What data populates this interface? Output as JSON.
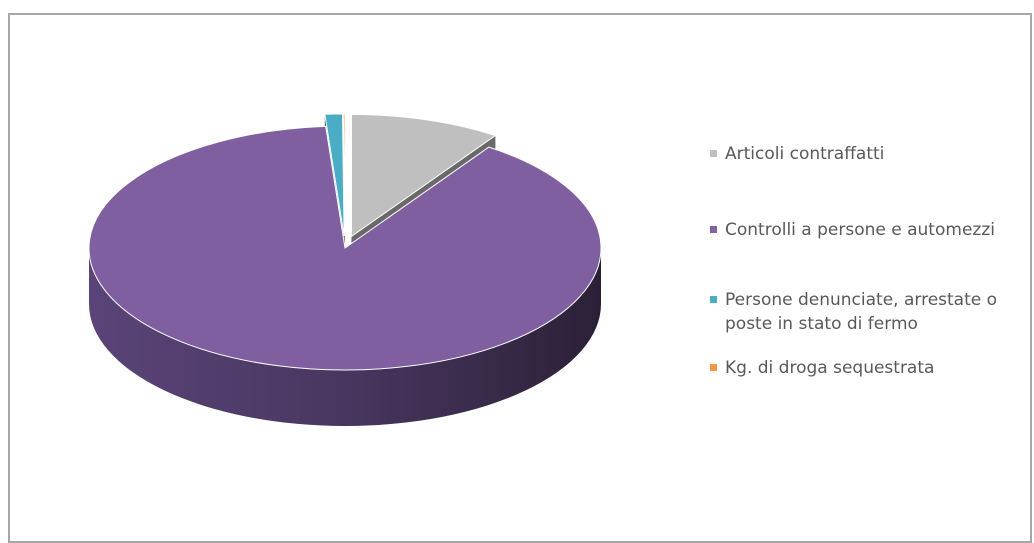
{
  "chart_data": {
    "type": "pie",
    "title": "",
    "legend_position": "right",
    "slices": [
      {
        "label": "Articoli contraffatti",
        "value": 9.5,
        "color": "#bfbfbf",
        "exploded": true
      },
      {
        "label": "Controlli a persone e automezzi",
        "value": 89.3,
        "color": "#7f5f9f",
        "exploded": false
      },
      {
        "label": "Persone denunciate, arrestate o poste in stato di fermo",
        "value": 1.1,
        "color": "#4bacc6",
        "exploded": true
      },
      {
        "label": "Kg. di droga sequestrata",
        "value": 0.1,
        "color": "#f79646",
        "exploded": true
      }
    ]
  },
  "legend": {
    "items": [
      {
        "label": "Articoli contraffatti",
        "color": "#bfbfbf"
      },
      {
        "label": "Controlli a persone e automezzi",
        "color": "#8064a2"
      },
      {
        "label": "Persone denunciate, arrestate o\nposte in stato di fermo",
        "color": "#4bacc6"
      },
      {
        "label": "Kg. di droga sequestrata",
        "color": "#f79646"
      }
    ]
  }
}
